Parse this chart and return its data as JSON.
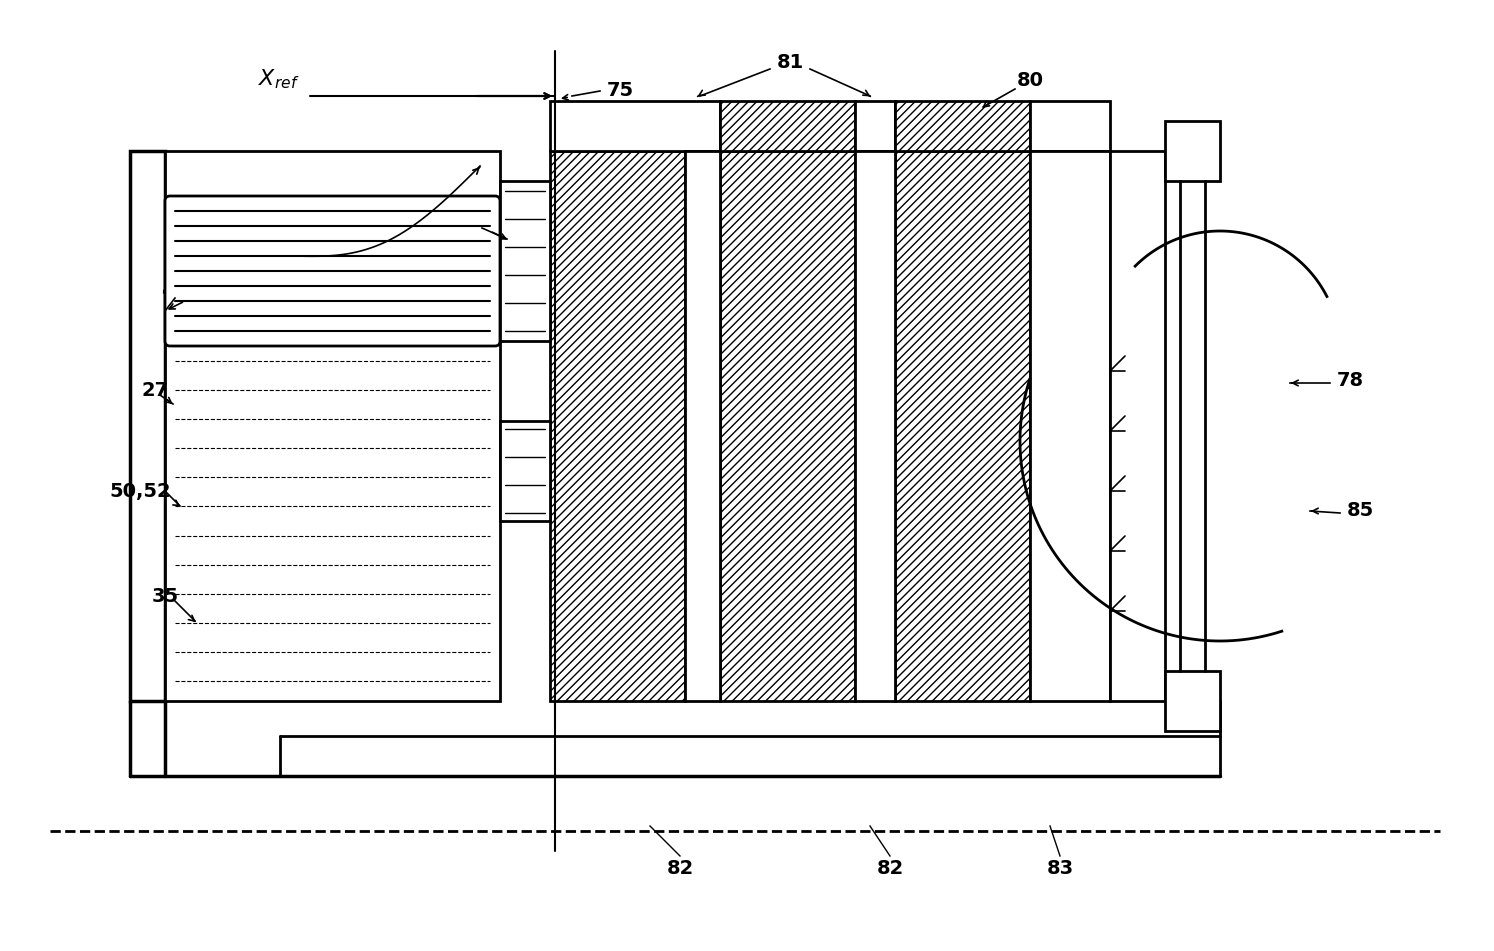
{
  "bg_color": "#ffffff",
  "line_color": "#000000",
  "fig_width": 14.94,
  "fig_height": 9.51,
  "dpi": 100
}
